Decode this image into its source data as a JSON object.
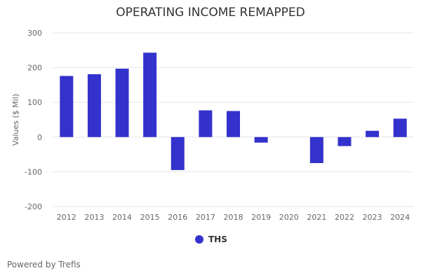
{
  "chart_data": {
    "type": "bar",
    "title": "OPERATING INCOME REMAPPED",
    "xlabel": "",
    "ylabel": "Values ($ Mil)",
    "ylim": [
      -200,
      300
    ],
    "yticks": [
      300,
      200,
      100,
      0,
      -100,
      -200
    ],
    "grid": true,
    "legend_position": "bottom",
    "categories": [
      "2012",
      "2013",
      "2014",
      "2015",
      "2016",
      "2017",
      "2018",
      "2019",
      "2020",
      "2021",
      "2022",
      "2023",
      "2024"
    ],
    "series": [
      {
        "name": "THS",
        "color": "#3432cc",
        "values": [
          176,
          181,
          197,
          243,
          -95,
          77,
          75,
          -16,
          0,
          -75,
          -26,
          18,
          53
        ]
      }
    ]
  },
  "footer": {
    "credit": "Powered by Trefis"
  }
}
